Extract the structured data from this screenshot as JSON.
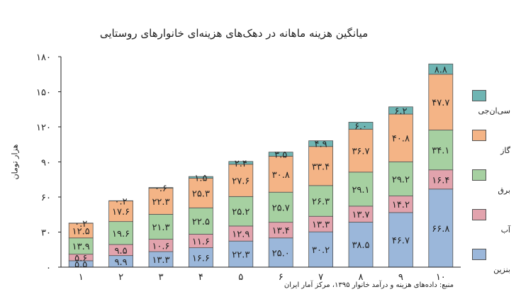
{
  "chart_data": {
    "type": "bar",
    "stacked": true,
    "title": "میانگین هزینه ماهانه در دهک‌های هزینه‌ای خانوارهای روستایی",
    "xlabel": "",
    "ylabel": "هزار تومان",
    "source": "منبع: داده‌های هزینه و درآمد خانوار ۱۳۹۵، مرکز آمار ایران",
    "ylim": [
      0,
      180
    ],
    "yticks": [
      "۰",
      "۳۰",
      "۶۰",
      "۹۰",
      "۱۲۰",
      "۱۵۰",
      "۱۸۰"
    ],
    "ytick_values": [
      0,
      30,
      60,
      90,
      120,
      150,
      180
    ],
    "categories": [
      "۱",
      "۲",
      "۳",
      "۴",
      "۵",
      "۶",
      "۷",
      "۸",
      "۹",
      "۱۰"
    ],
    "legend_position": "right",
    "series": [
      {
        "name": "بنزین",
        "color": "#9bb7da",
        "values": [
          5.5,
          9.9,
          13.3,
          16.6,
          22.3,
          25.0,
          30.2,
          38.5,
          46.7,
          66.8
        ],
        "labels": [
          "۵.۵",
          "۹.۹",
          "۱۳.۳",
          "۱۶.۶",
          "۲۲.۳",
          "۲۵.۰",
          "۳۰.۲",
          "۳۸.۵",
          "۴۶.۷",
          "۶۶.۸"
        ]
      },
      {
        "name": "آب",
        "color": "#e2a3ad",
        "values": [
          5.6,
          9.5,
          10.6,
          11.6,
          12.9,
          13.4,
          13.3,
          13.7,
          14.2,
          16.4
        ],
        "labels": [
          "۵.۶",
          "۹.۵",
          "۱۰.۶",
          "۱۱.۶",
          "۱۲.۹",
          "۱۳.۴",
          "۱۳.۳",
          "۱۳.۷",
          "۱۴.۲",
          "۱۶.۴"
        ]
      },
      {
        "name": "برق",
        "color": "#a6d0a1",
        "values": [
          13.9,
          19.6,
          21.3,
          22.5,
          25.2,
          25.7,
          26.3,
          29.1,
          29.2,
          34.1
        ],
        "labels": [
          "۱۳.۹",
          "۱۹.۶",
          "۲۱.۳",
          "۲۲.۵",
          "۲۵.۲",
          "۲۵.۷",
          "۲۶.۳",
          "۲۹.۱",
          "۲۹.۲",
          "۳۴.۱"
        ]
      },
      {
        "name": "گاز",
        "color": "#f4b486",
        "values": [
          12.5,
          17.6,
          22.3,
          25.3,
          27.6,
          30.8,
          33.4,
          36.7,
          40.8,
          47.7
        ],
        "labels": [
          "۱۲.۵",
          "۱۷.۶",
          "۲۲.۳",
          "۲۵.۳",
          "۲۷.۶",
          "۳۰.۸",
          "۳۳.۴",
          "۳۶.۷",
          "۴۰.۸",
          "۴۷.۷"
        ]
      },
      {
        "name": "سی‌ان‌جی",
        "color": "#6fb5b3",
        "values": [
          0.2,
          0.2,
          0.6,
          1.5,
          2.4,
          3.5,
          4.9,
          6.0,
          6.2,
          8.8
        ],
        "labels": [
          "۰.۲",
          "۰.۲",
          "۰.۶",
          "۱.۵",
          "۲.۴",
          "۳.۵",
          "۴.۹",
          "۶.۰",
          "۶.۲",
          "۸.۸"
        ]
      }
    ]
  }
}
